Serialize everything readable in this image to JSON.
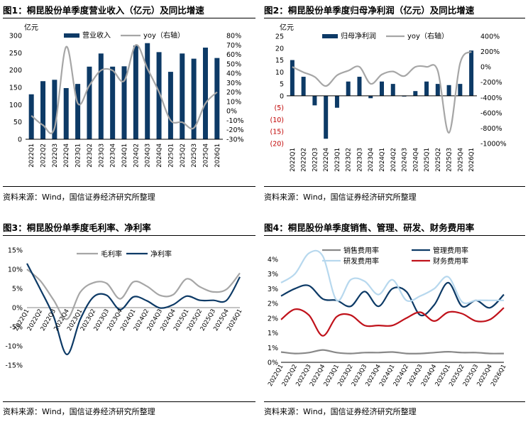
{
  "colors": {
    "navy": "#0d3a66",
    "grey": "#a6a6a6",
    "light_blue": "#b7d8ee",
    "red": "#c0121b",
    "dark_grey": "#888888",
    "neg_label": "#c00000"
  },
  "chart_data": [
    {
      "id": "fig1",
      "type": "bar",
      "title": "图1：桐昆股份单季度营业收入（亿元）及同比增速",
      "source": "资料来源：Wind，国信证券经济研究所整理",
      "unit_label": "亿元",
      "categories": [
        "2022Q1",
        "2022Q2",
        "2022Q3",
        "2022Q4",
        "2023Q1",
        "2023Q2",
        "2023Q3",
        "2023Q4",
        "2024Q1",
        "2024Q2",
        "2024Q3",
        "2024Q4",
        "2025Q1",
        "2025Q2",
        "2025Q3",
        "2025Q4",
        "2026Q1"
      ],
      "series": [
        {
          "name": "营业收入",
          "type": "bar",
          "axis": "left",
          "values": [
            130,
            168,
            172,
            148,
            160,
            210,
            248,
            210,
            211,
            271,
            278,
            252,
            195,
            248,
            233,
            265,
            235
          ]
        },
        {
          "name": "yoy（右轴）",
          "type": "line",
          "axis": "right",
          "values": [
            -5,
            -15,
            -18,
            68,
            8,
            27,
            43,
            43,
            32,
            70,
            45,
            20,
            -10,
            -12,
            -18,
            8,
            20
          ]
        }
      ],
      "ylim_left": [
        0,
        300
      ],
      "yticks_left": [
        "0",
        "50",
        "100",
        "150",
        "200",
        "250",
        "300"
      ],
      "ylim_right": [
        -30,
        80
      ],
      "yticks_right": [
        "-30%",
        "-20%",
        "-10%",
        "0%",
        "10%",
        "20%",
        "30%",
        "40%",
        "50%",
        "60%",
        "70%",
        "80%"
      ]
    },
    {
      "id": "fig2",
      "type": "bar",
      "title": "图2：桐昆股份单季度归母净利润（亿元）及同比增速",
      "source": "资料来源：Wind，国信证券经济研究所整理",
      "unit_label": "亿元",
      "categories": [
        "2022Q1",
        "2022Q2",
        "2022Q3",
        "2022Q4",
        "2023Q1",
        "2023Q2",
        "2023Q3",
        "2023Q4",
        "2024Q1",
        "2024Q2",
        "2024Q3",
        "2024Q4",
        "2025Q1",
        "2025Q2",
        "2025Q3",
        "2025Q4",
        "2026Q1"
      ],
      "series": [
        {
          "name": "归母净利润",
          "type": "bar",
          "axis": "left",
          "values": [
            15,
            8,
            -4,
            -18,
            -5,
            6,
            8,
            -1,
            6,
            5,
            -0.3,
            2,
            6,
            5,
            4.5,
            5,
            19
          ]
        },
        {
          "name": "yoy（右轴）",
          "type": "line",
          "axis": "right",
          "values": [
            0,
            -70,
            -130,
            -250,
            -110,
            -50,
            0,
            -220,
            -100,
            -60,
            -120,
            0,
            0,
            -50,
            -860,
            50,
            200
          ]
        }
      ],
      "ylim_left": [
        -20,
        25
      ],
      "yticks_left": [
        "(20)",
        "(15)",
        "(10)",
        "(5)",
        "0",
        "5",
        "10",
        "15",
        "20",
        "25"
      ],
      "ylim_right": [
        -1000,
        400
      ],
      "yticks_right": [
        "-1000%",
        "-800%",
        "-600%",
        "-400%",
        "-200%",
        "0%",
        "200%",
        "400%"
      ]
    },
    {
      "id": "fig3",
      "type": "line",
      "title": "图3：桐昆股份单季度毛利率、净利率",
      "source": "资料来源：Wind，国信证券经济研究所整理",
      "categories": [
        "2022Q1",
        "2022Q2",
        "2022Q3",
        "2022Q4",
        "2023Q1",
        "2023Q2",
        "2023Q3",
        "2023Q4",
        "2024Q1",
        "2024Q2",
        "2024Q3",
        "2024Q4",
        "2025Q1",
        "2025Q2",
        "2025Q3",
        "2025Q4",
        "2026Q1"
      ],
      "series": [
        {
          "name": "毛利率",
          "values": [
            10,
            7,
            2,
            -3,
            4,
            6.5,
            6.3,
            2.3,
            6.7,
            5.6,
            3.2,
            3.4,
            7.5,
            5.4,
            4.1,
            4.8,
            9
          ]
        },
        {
          "name": "净利率",
          "values": [
            11.5,
            4.8,
            -2.3,
            -12.2,
            -3.1,
            2.8,
            3.2,
            -0.5,
            2.8,
            1.8,
            -0.1,
            0.8,
            3,
            1.9,
            1.9,
            1.9,
            8
          ]
        }
      ],
      "ylim": [
        -15,
        15
      ],
      "yticks": [
        "-15%",
        "-10%",
        "-5%",
        "0%",
        "5%",
        "10%",
        "15%"
      ]
    },
    {
      "id": "fig4",
      "type": "line",
      "title": "图4：桐昆股份单季度销售、管理、研发、财务费用率",
      "source": "资料来源：Wind，国信证券经济研究所整理",
      "categories": [
        "2022Q1",
        "2022Q2",
        "2022Q3",
        "2022Q4",
        "2023Q1",
        "2023Q2",
        "2023Q3",
        "2023Q4",
        "2024Q1",
        "2024Q2",
        "2024Q3",
        "2024Q4",
        "2025Q1",
        "2025Q2",
        "2025Q3",
        "2025Q4",
        "2026Q1"
      ],
      "series": [
        {
          "name": "销售费用率",
          "values": [
            0.35,
            0.3,
            0.33,
            0.42,
            0.33,
            0.3,
            0.33,
            0.33,
            0.35,
            0.3,
            0.3,
            0.33,
            0.36,
            0.33,
            0.33,
            0.3,
            0.3
          ]
        },
        {
          "name": "管理费用率",
          "values": [
            2.25,
            2.5,
            2.6,
            2.15,
            2.1,
            1.9,
            2.4,
            1.9,
            2.5,
            2.4,
            1.6,
            1.95,
            2.7,
            1.9,
            2.1,
            1.85,
            2.3
          ]
        },
        {
          "name": "研发费用率",
          "values": [
            2.7,
            3.0,
            3.7,
            3.6,
            2.1,
            2.8,
            2.75,
            2.3,
            2.8,
            2.1,
            2.25,
            2.5,
            2.9,
            2.05,
            2.1,
            2.1,
            2.1
          ]
        },
        {
          "name": "财务费用率",
          "values": [
            1.45,
            1.8,
            1.6,
            0.9,
            1.55,
            1.6,
            1.25,
            1.25,
            1.25,
            1.5,
            1.7,
            1.4,
            1.7,
            1.65,
            1.4,
            1.45,
            1.85
          ]
        }
      ],
      "ylim": [
        0,
        4
      ],
      "yticks": [
        "0%",
        "1%",
        "1%",
        "2%",
        "2%",
        "3%",
        "3%",
        "4%"
      ]
    }
  ]
}
